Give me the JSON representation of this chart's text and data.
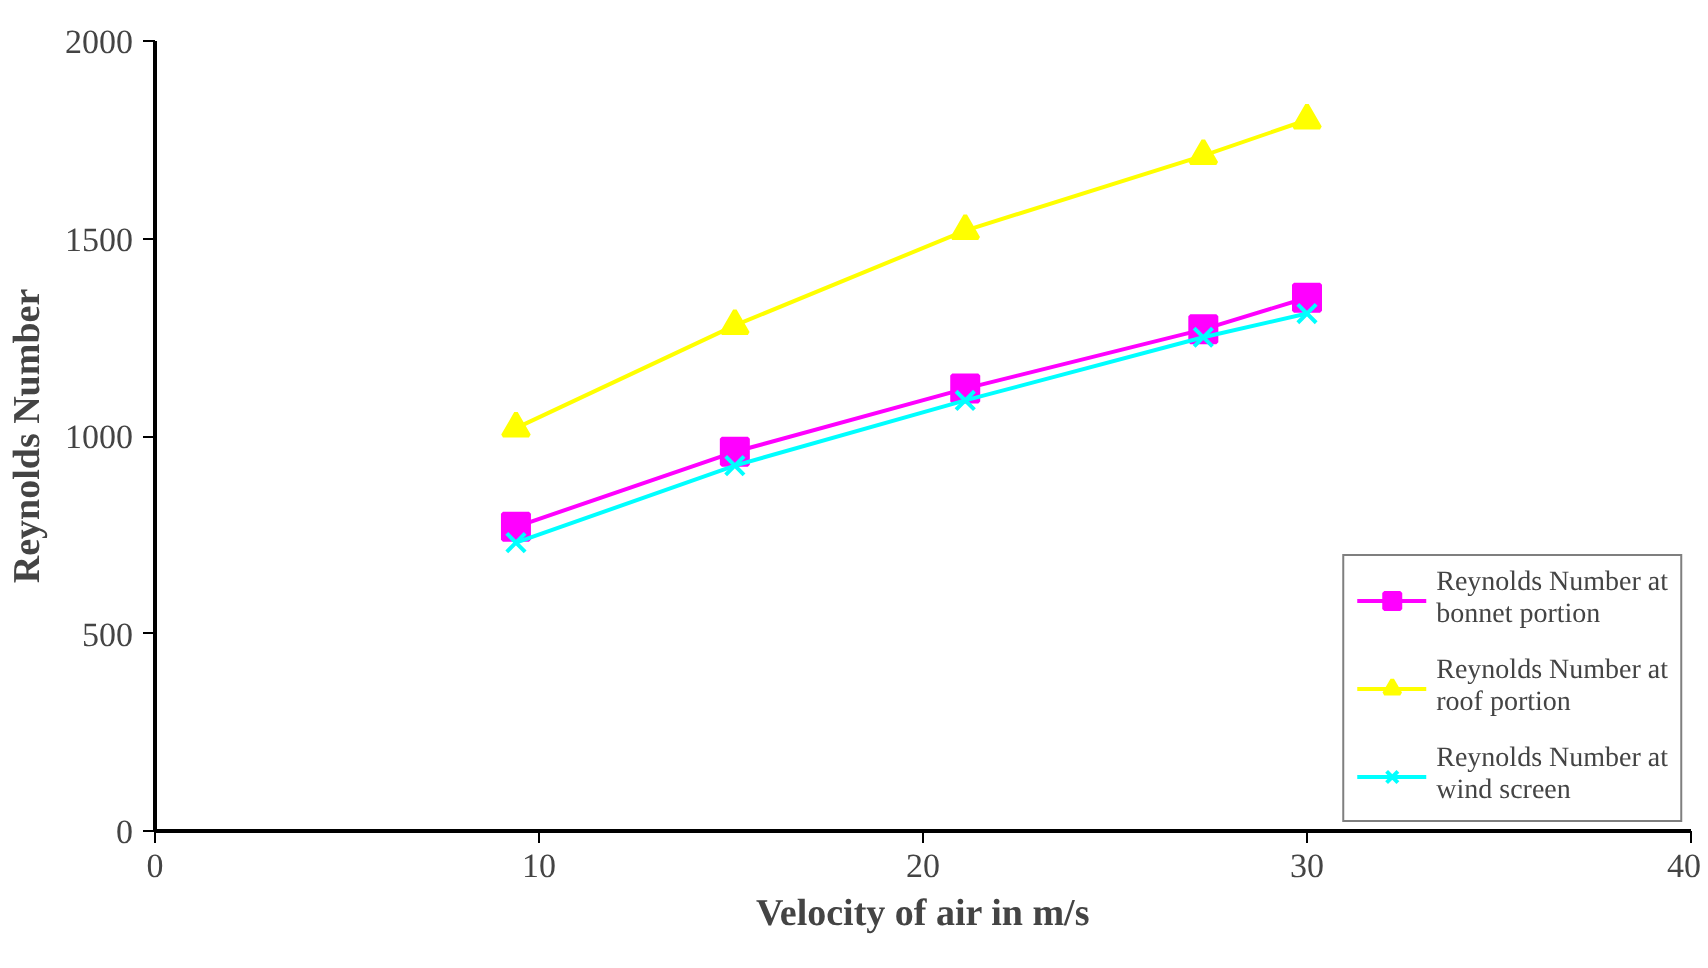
{
  "chart_data": {
    "type": "line",
    "xlabel": "Velocity of air in m/s",
    "ylabel": "Reynolds Number",
    "x": [
      9.4,
      15.1,
      21.1,
      27.3,
      30
    ],
    "series": [
      {
        "name": "Reynolds Number at bonnet portion",
        "color": "#ff00ff",
        "marker": "square",
        "values": [
          770,
          960,
          1120,
          1270,
          1350
        ]
      },
      {
        "name": "Reynolds Number at roof portion",
        "color": "#ffff00",
        "marker": "triangle",
        "values": [
          1020,
          1280,
          1520,
          1710,
          1800
        ]
      },
      {
        "name": "Reynolds Number at wind screen",
        "color": "#00ffff",
        "marker": "cross",
        "values": [
          730,
          925,
          1090,
          1250,
          1310
        ]
      }
    ],
    "xlim": [
      0,
      40
    ],
    "ylim": [
      0,
      2000
    ],
    "xticks": [
      0,
      10,
      20,
      30,
      40
    ],
    "yticks": [
      0,
      500,
      1000,
      1500,
      2000
    ],
    "grid": false,
    "legend": "bottom right"
  }
}
